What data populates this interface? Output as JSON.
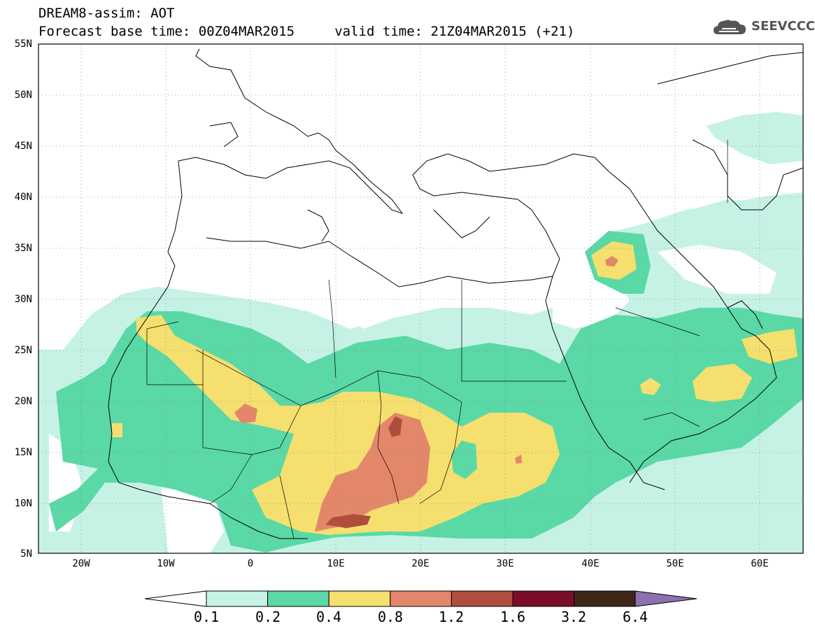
{
  "header": {
    "title_line1": "DREAM8-assim: AOT",
    "title_line2": "Forecast base time: 00Z04MAR2015     valid time: 21Z04MAR2015 (+21)",
    "logo_text": "SEEVCCC"
  },
  "map": {
    "lon_range": [
      -25,
      65
    ],
    "lat_range": [
      5,
      55
    ],
    "lat_labels": [
      "55N",
      "50N",
      "45N",
      "40N",
      "35N",
      "30N",
      "25N",
      "20N",
      "15N",
      "10N",
      "5N"
    ],
    "lon_labels": [
      "20W",
      "10W",
      "0",
      "10E",
      "20E",
      "30E",
      "40E",
      "50E",
      "60E"
    ],
    "variable": "AOT"
  },
  "colorbar": {
    "levels": [
      "0.1",
      "0.2",
      "0.4",
      "0.8",
      "1.2",
      "1.6",
      "3.2",
      "6.4"
    ],
    "colors": [
      "#c6f2e6",
      "#5ad8a6",
      "#f5df6e",
      "#e3876a",
      "#b04e3e",
      "#7a0e2a",
      "#3f2718",
      "#8e6fb0"
    ],
    "under_color": "#ffffff"
  }
}
